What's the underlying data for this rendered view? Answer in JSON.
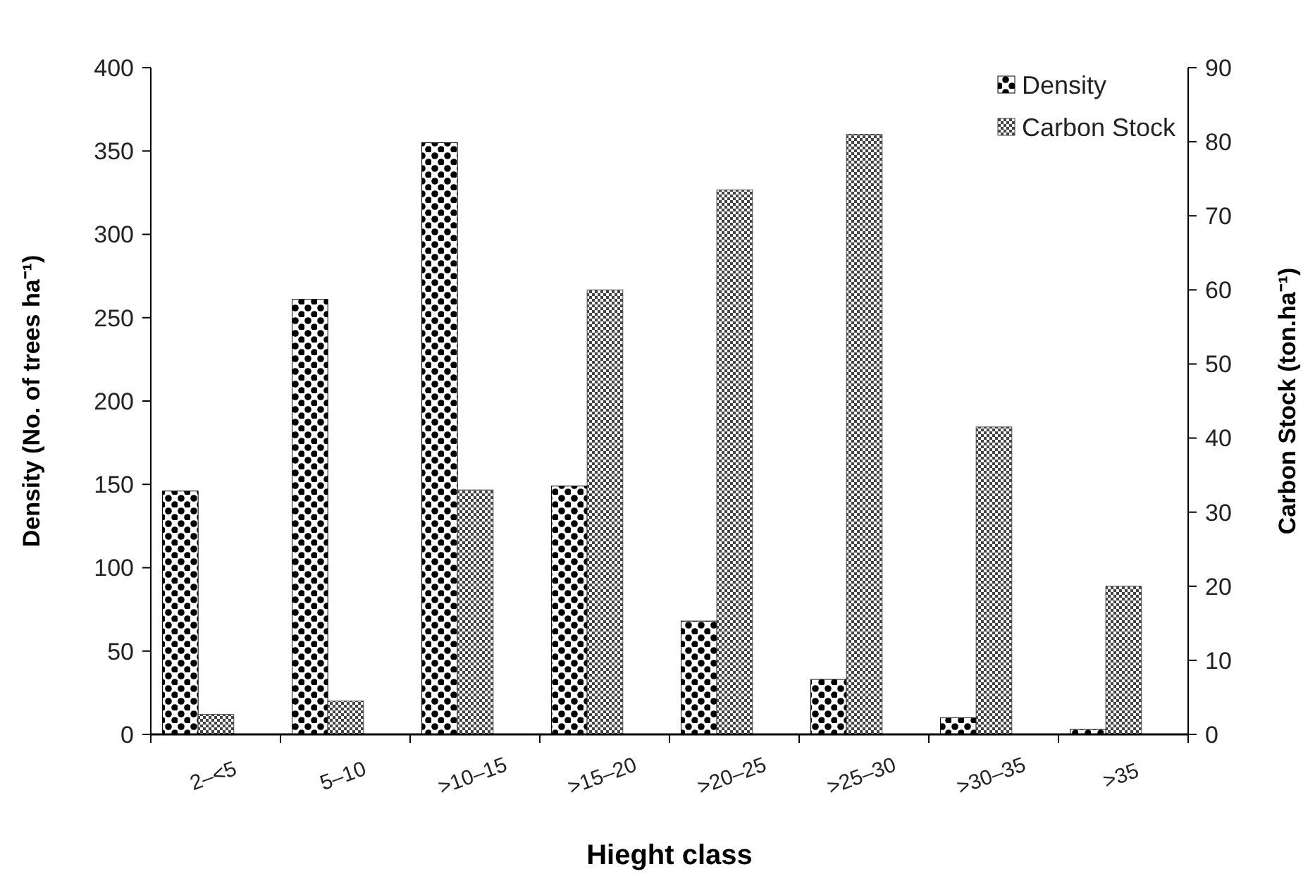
{
  "chart_data": {
    "type": "bar",
    "xlabel": "Hieght class",
    "ylabel": "Density (No. of trees ha⁻¹)",
    "y2label": "Carbon Stock (ton.ha⁻¹)",
    "categories": [
      "2–<5",
      "5–10",
      ">10–15",
      ">15–20",
      ">20–25",
      ">25–30",
      ">30–35",
      ">35"
    ],
    "series": [
      {
        "name": "Density",
        "color": "#000000",
        "values": [
          146,
          261,
          355,
          149,
          68,
          33,
          10,
          3
        ]
      },
      {
        "name": "Carbon Stock",
        "color": "#444444",
        "axis": "y2",
        "values": [
          2.7,
          4.5,
          33,
          60,
          73.5,
          81,
          41.5,
          20
        ]
      }
    ],
    "ylim": [
      0,
      400
    ],
    "yticks": [
      0,
      50,
      100,
      150,
      200,
      250,
      300,
      350,
      400
    ],
    "y2lim": [
      0,
      90
    ],
    "y2ticks": [
      0,
      10,
      20,
      30,
      40,
      50,
      60,
      70,
      80,
      90
    ],
    "grid": false,
    "legend": "top right"
  }
}
